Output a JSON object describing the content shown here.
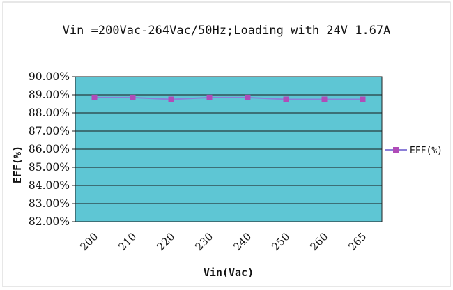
{
  "chart_data": {
    "type": "line",
    "title": "Vin =200Vac-264Vac/50Hz;Loading with 24V 1.67A",
    "xlabel": "Vin(Vac)",
    "ylabel": "EFF(%)",
    "categories": [
      "200",
      "210",
      "220",
      "230",
      "240",
      "250",
      "260",
      "265"
    ],
    "series": [
      {
        "name": "EFF(%)",
        "values": [
          88.85,
          88.85,
          88.75,
          88.85,
          88.85,
          88.75,
          88.75,
          88.75
        ]
      }
    ],
    "ylim": [
      82,
      90
    ],
    "yticks": [
      "90.00%",
      "89.00%",
      "88.00%",
      "87.00%",
      "86.00%",
      "85.00%",
      "84.00%",
      "83.00%",
      "82.00%"
    ],
    "grid": true,
    "legend": "right",
    "colors": {
      "plot_bg": "#5ec6d4",
      "line": "#8c7fd8",
      "marker": "#b04cb8",
      "grid": "#1a1a1a"
    }
  }
}
